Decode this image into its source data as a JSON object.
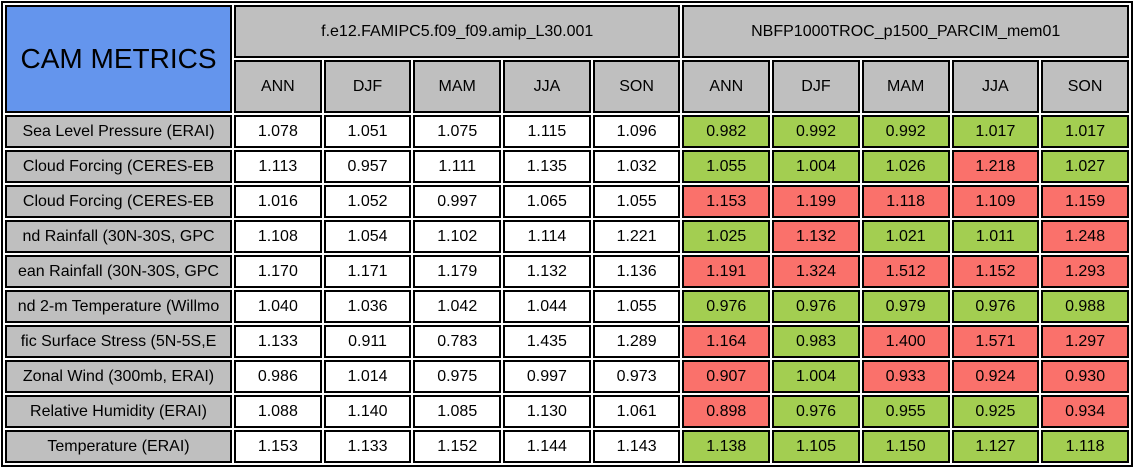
{
  "chart_data": {
    "type": "table",
    "title": "CAM METRICS",
    "model_headers": [
      "f.e12.FAMIPC5.f09_f09.amip_L30.001",
      "NBFP1000TROC_p1500_PARCIM_mem01"
    ],
    "season_columns": [
      "ANN",
      "DJF",
      "MAM",
      "JJA",
      "SON"
    ],
    "status_legend": {
      "better": "green",
      "worse": "red"
    },
    "rows": [
      {
        "label": "Sea Level Pressure (ERAI)",
        "model1": [
          1.078,
          1.051,
          1.075,
          1.115,
          1.096
        ],
        "model2": [
          0.982,
          0.992,
          0.992,
          1.017,
          1.017
        ],
        "model2_status": [
          "better",
          "better",
          "better",
          "better",
          "better"
        ]
      },
      {
        "label": "Cloud Forcing (CERES-EB",
        "model1": [
          1.113,
          0.957,
          1.111,
          1.135,
          1.032
        ],
        "model2": [
          1.055,
          1.004,
          1.026,
          1.218,
          1.027
        ],
        "model2_status": [
          "better",
          "better",
          "better",
          "worse",
          "better"
        ]
      },
      {
        "label": "Cloud Forcing (CERES-EB",
        "model1": [
          1.016,
          1.052,
          0.997,
          1.065,
          1.055
        ],
        "model2": [
          1.153,
          1.199,
          1.118,
          1.109,
          1.159
        ],
        "model2_status": [
          "worse",
          "worse",
          "worse",
          "worse",
          "worse"
        ]
      },
      {
        "label": "nd Rainfall (30N-30S, GPC",
        "model1": [
          1.108,
          1.054,
          1.102,
          1.114,
          1.221
        ],
        "model2": [
          1.025,
          1.132,
          1.021,
          1.011,
          1.248
        ],
        "model2_status": [
          "better",
          "worse",
          "better",
          "better",
          "worse"
        ]
      },
      {
        "label": "ean Rainfall (30N-30S, GPC",
        "model1": [
          1.17,
          1.171,
          1.179,
          1.132,
          1.136
        ],
        "model2": [
          1.191,
          1.324,
          1.512,
          1.152,
          1.293
        ],
        "model2_status": [
          "worse",
          "worse",
          "worse",
          "worse",
          "worse"
        ]
      },
      {
        "label": "nd 2-m Temperature (Willmo",
        "model1": [
          1.04,
          1.036,
          1.042,
          1.044,
          1.055
        ],
        "model2": [
          0.976,
          0.976,
          0.979,
          0.976,
          0.988
        ],
        "model2_status": [
          "better",
          "better",
          "better",
          "better",
          "better"
        ]
      },
      {
        "label": "fic Surface Stress (5N-5S,E",
        "model1": [
          1.133,
          0.911,
          0.783,
          1.435,
          1.289
        ],
        "model2": [
          1.164,
          0.983,
          1.4,
          1.571,
          1.297
        ],
        "model2_status": [
          "worse",
          "better",
          "worse",
          "worse",
          "worse"
        ]
      },
      {
        "label": "Zonal Wind (300mb, ERAI)",
        "model1": [
          0.986,
          1.014,
          0.975,
          0.997,
          0.973
        ],
        "model2": [
          0.907,
          1.004,
          0.933,
          0.924,
          0.93
        ],
        "model2_status": [
          "worse",
          "better",
          "worse",
          "worse",
          "worse"
        ]
      },
      {
        "label": "Relative Humidity (ERAI)",
        "model1": [
          1.088,
          1.14,
          1.085,
          1.13,
          1.061
        ],
        "model2": [
          0.898,
          0.976,
          0.955,
          0.925,
          0.934
        ],
        "model2_status": [
          "worse",
          "better",
          "better",
          "better",
          "worse"
        ]
      },
      {
        "label": "Temperature (ERAI)",
        "model1": [
          1.153,
          1.133,
          1.152,
          1.144,
          1.143
        ],
        "model2": [
          1.138,
          1.105,
          1.15,
          1.127,
          1.118
        ],
        "model2_status": [
          "better",
          "better",
          "better",
          "better",
          "better"
        ]
      }
    ]
  },
  "colors": {
    "title_blue": "#6495ED",
    "header_gray": "#BFBFBF",
    "model1_cell_white": "#FFFFFF",
    "better_green": "#A3CE51",
    "worse_red": "#FA716B",
    "border_black": "#000000",
    "page_background": "#FFFFFF"
  }
}
